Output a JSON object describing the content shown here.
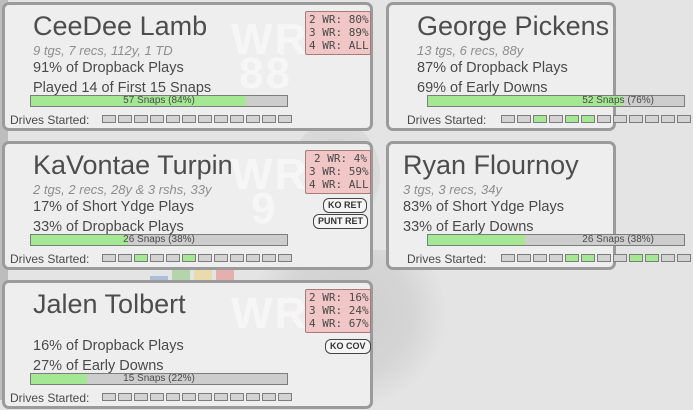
{
  "cards": [
    {
      "name": "CeeDee Lamb",
      "stats": "9 tgs, 7 recs, 112y, 1 TD",
      "line2": "91% of Dropback Plays",
      "line3": "Played 14 of First 15 Snaps",
      "snaps_label": "57 Snaps (84%)",
      "snaps_pct": 84,
      "wr": [
        "2 WR: 80%",
        "3 WR: 89%",
        "4 WR: ALL"
      ],
      "watermark": [
        "WR",
        "88"
      ],
      "tags": [],
      "drives_label": "Drives Started:",
      "drives": [
        false,
        false,
        false,
        false,
        false,
        false,
        false,
        false,
        false,
        false,
        false,
        false
      ]
    },
    {
      "name": "George Pickens",
      "stats": "13 tgs, 6 recs, 88y",
      "line2": "87% of Dropback Plays",
      "line3": "69% of Early Downs",
      "snaps_label": "52 Snaps (76%)",
      "snaps_pct": 76,
      "wr": [],
      "watermark": [],
      "tags": [],
      "drives_label": "Drives Started:",
      "drives": [
        false,
        false,
        true,
        false,
        true,
        true,
        false,
        false,
        false,
        false,
        false,
        false
      ]
    },
    {
      "name": "KaVontae Turpin",
      "stats": "2 tgs, 2 recs, 28y & 3 rshs, 33y",
      "line2": "17% of Short Ydge Plays",
      "line3": "33% of Dropback Plays",
      "snaps_label": "26 Snaps (38%)",
      "snaps_pct": 38,
      "wr": [
        "2 WR:  4%",
        "3 WR: 59%",
        "4 WR: ALL"
      ],
      "watermark": [
        "WR",
        "9"
      ],
      "tags": [
        "KO RET",
        "PUNT RET"
      ],
      "drives_label": "Drives Started:",
      "drives": [
        false,
        false,
        true,
        false,
        false,
        true,
        false,
        false,
        false,
        false,
        false,
        false
      ]
    },
    {
      "name": "Ryan Flournoy",
      "stats": "3 tgs, 3 recs, 34y",
      "line2": "83% of Short Ydge Plays",
      "line3": "33% of Early Downs",
      "snaps_label": "26 Snaps (38%)",
      "snaps_pct": 38,
      "wr": [],
      "watermark": [],
      "tags": [],
      "drives_label": "Drives Started:",
      "drives": [
        false,
        false,
        false,
        false,
        true,
        true,
        false,
        false,
        true,
        true,
        false,
        false
      ]
    },
    {
      "name": "Jalen Tolbert",
      "stats": "",
      "line2": "16% of Dropback Plays",
      "line3": "27% of Early Downs",
      "snaps_label": "15 Snaps (22%)",
      "snaps_pct": 22,
      "wr": [
        "2 WR: 16%",
        "3 WR: 24%",
        "4 WR: 67%"
      ],
      "watermark": [
        "WR"
      ],
      "tags": [
        "KO COV"
      ],
      "drives_label": "Drives Started:",
      "drives": [
        false,
        false,
        false,
        false,
        false,
        false,
        false,
        false,
        false,
        false,
        false,
        false
      ]
    }
  ]
}
